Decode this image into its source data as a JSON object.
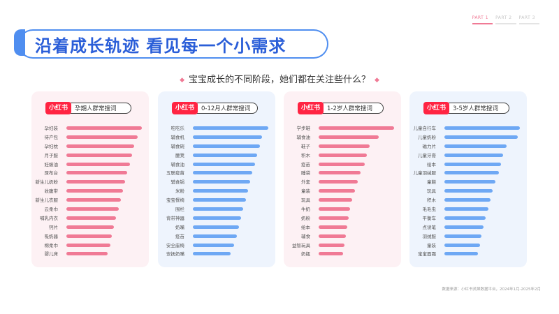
{
  "parts": [
    "PART 1",
    "PART 2",
    "PART 3"
  ],
  "title": "沿着成长轨迹 看见每一个小需求",
  "question": "宝宝成长的不同阶段，她们都在关注些什么？",
  "brand_label": "小红书",
  "source": "数据来源：小红书灵犀数据平台，2024年1月-2025年2月",
  "colors": {
    "pink": "#f07a95",
    "blue": "#6ea8f4",
    "title": "#2a5ed8",
    "brand": "#ff2442"
  },
  "chart_data": [
    {
      "type": "bar",
      "title": "孕期人群常搜词",
      "categories": [
        "孕妇装",
        "待产包",
        "孕妇枕",
        "月子服",
        "妊娠油",
        "尿布台",
        "新生儿奶粉",
        "收腹带",
        "新生儿衣服",
        "云柔巾",
        "哺乳内衣",
        "钙片",
        "吸奶器",
        "棉柔巾",
        "婴儿床"
      ],
      "values": [
        100,
        94,
        90,
        87,
        84,
        81,
        78,
        75,
        72,
        69,
        66,
        63,
        60,
        58,
        55
      ]
    },
    {
      "type": "bar",
      "title": "0-12月人群常搜词",
      "categories": [
        "吃吃乐",
        "辅食机",
        "辅食碗",
        "腰凳",
        "辅食油",
        "五联疫苗",
        "辅食锅",
        "米粉",
        "宝宝餐椅",
        "围栏",
        "背带神器",
        "奶嘴",
        "疫苗",
        "安全座椅",
        "安抚奶嘴"
      ],
      "values": [
        100,
        92,
        89,
        85,
        82,
        79,
        76,
        73,
        70,
        67,
        64,
        61,
        58,
        55,
        50
      ]
    },
    {
      "type": "bar",
      "title": "1-2岁人群常搜词",
      "categories": [
        "学步鞋",
        "辅食油",
        "鞋子",
        "积木",
        "疫苗",
        "睡袋",
        "外套",
        "童装",
        "玩具",
        "牛奶",
        "奶粉",
        "绘本",
        "辅食",
        "益智玩具",
        "奶瓶"
      ],
      "values": [
        100,
        80,
        68,
        64,
        61,
        56,
        52,
        48,
        44,
        42,
        40,
        38,
        36,
        34,
        32
      ]
    },
    {
      "type": "bar",
      "title": "3-5岁人群常搜词",
      "categories": [
        "儿童自行车",
        "儿童奶粉",
        "磁力片",
        "儿童牙膏",
        "绘本",
        "儿童羽绒服",
        "童鞋",
        "玩具",
        "积木",
        "毛毛虫",
        "平衡车",
        "点读笔",
        "羽绒服",
        "童装",
        "宝宝面霜"
      ],
      "values": [
        100,
        97,
        82,
        78,
        75,
        72,
        68,
        64,
        61,
        58,
        55,
        52,
        49,
        47,
        44
      ]
    }
  ]
}
